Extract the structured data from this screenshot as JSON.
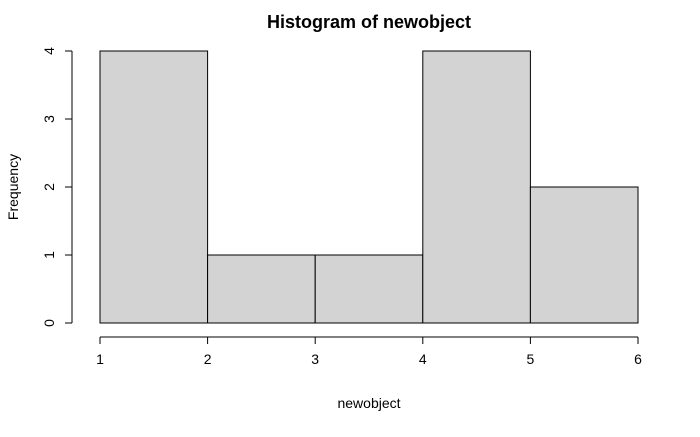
{
  "chart_data": {
    "type": "bar",
    "subtype": "histogram",
    "title": "Histogram of newobject",
    "xlabel": "newobject",
    "ylabel": "Frequency",
    "bins": [
      {
        "start": 1,
        "end": 2,
        "count": 4
      },
      {
        "start": 2,
        "end": 3,
        "count": 1
      },
      {
        "start": 3,
        "end": 4,
        "count": 1
      },
      {
        "start": 4,
        "end": 5,
        "count": 4
      },
      {
        "start": 5,
        "end": 6,
        "count": 2
      }
    ],
    "xlim": [
      1,
      6
    ],
    "ylim": [
      0,
      4
    ],
    "x_ticks": [
      1,
      2,
      3,
      4,
      5,
      6
    ],
    "y_ticks": [
      0,
      1,
      2,
      3,
      4
    ],
    "grid": false,
    "legend": "none",
    "colors": {
      "bar_fill": "#d3d3d3",
      "bar_stroke": "#000000",
      "axis": "#000000"
    }
  }
}
